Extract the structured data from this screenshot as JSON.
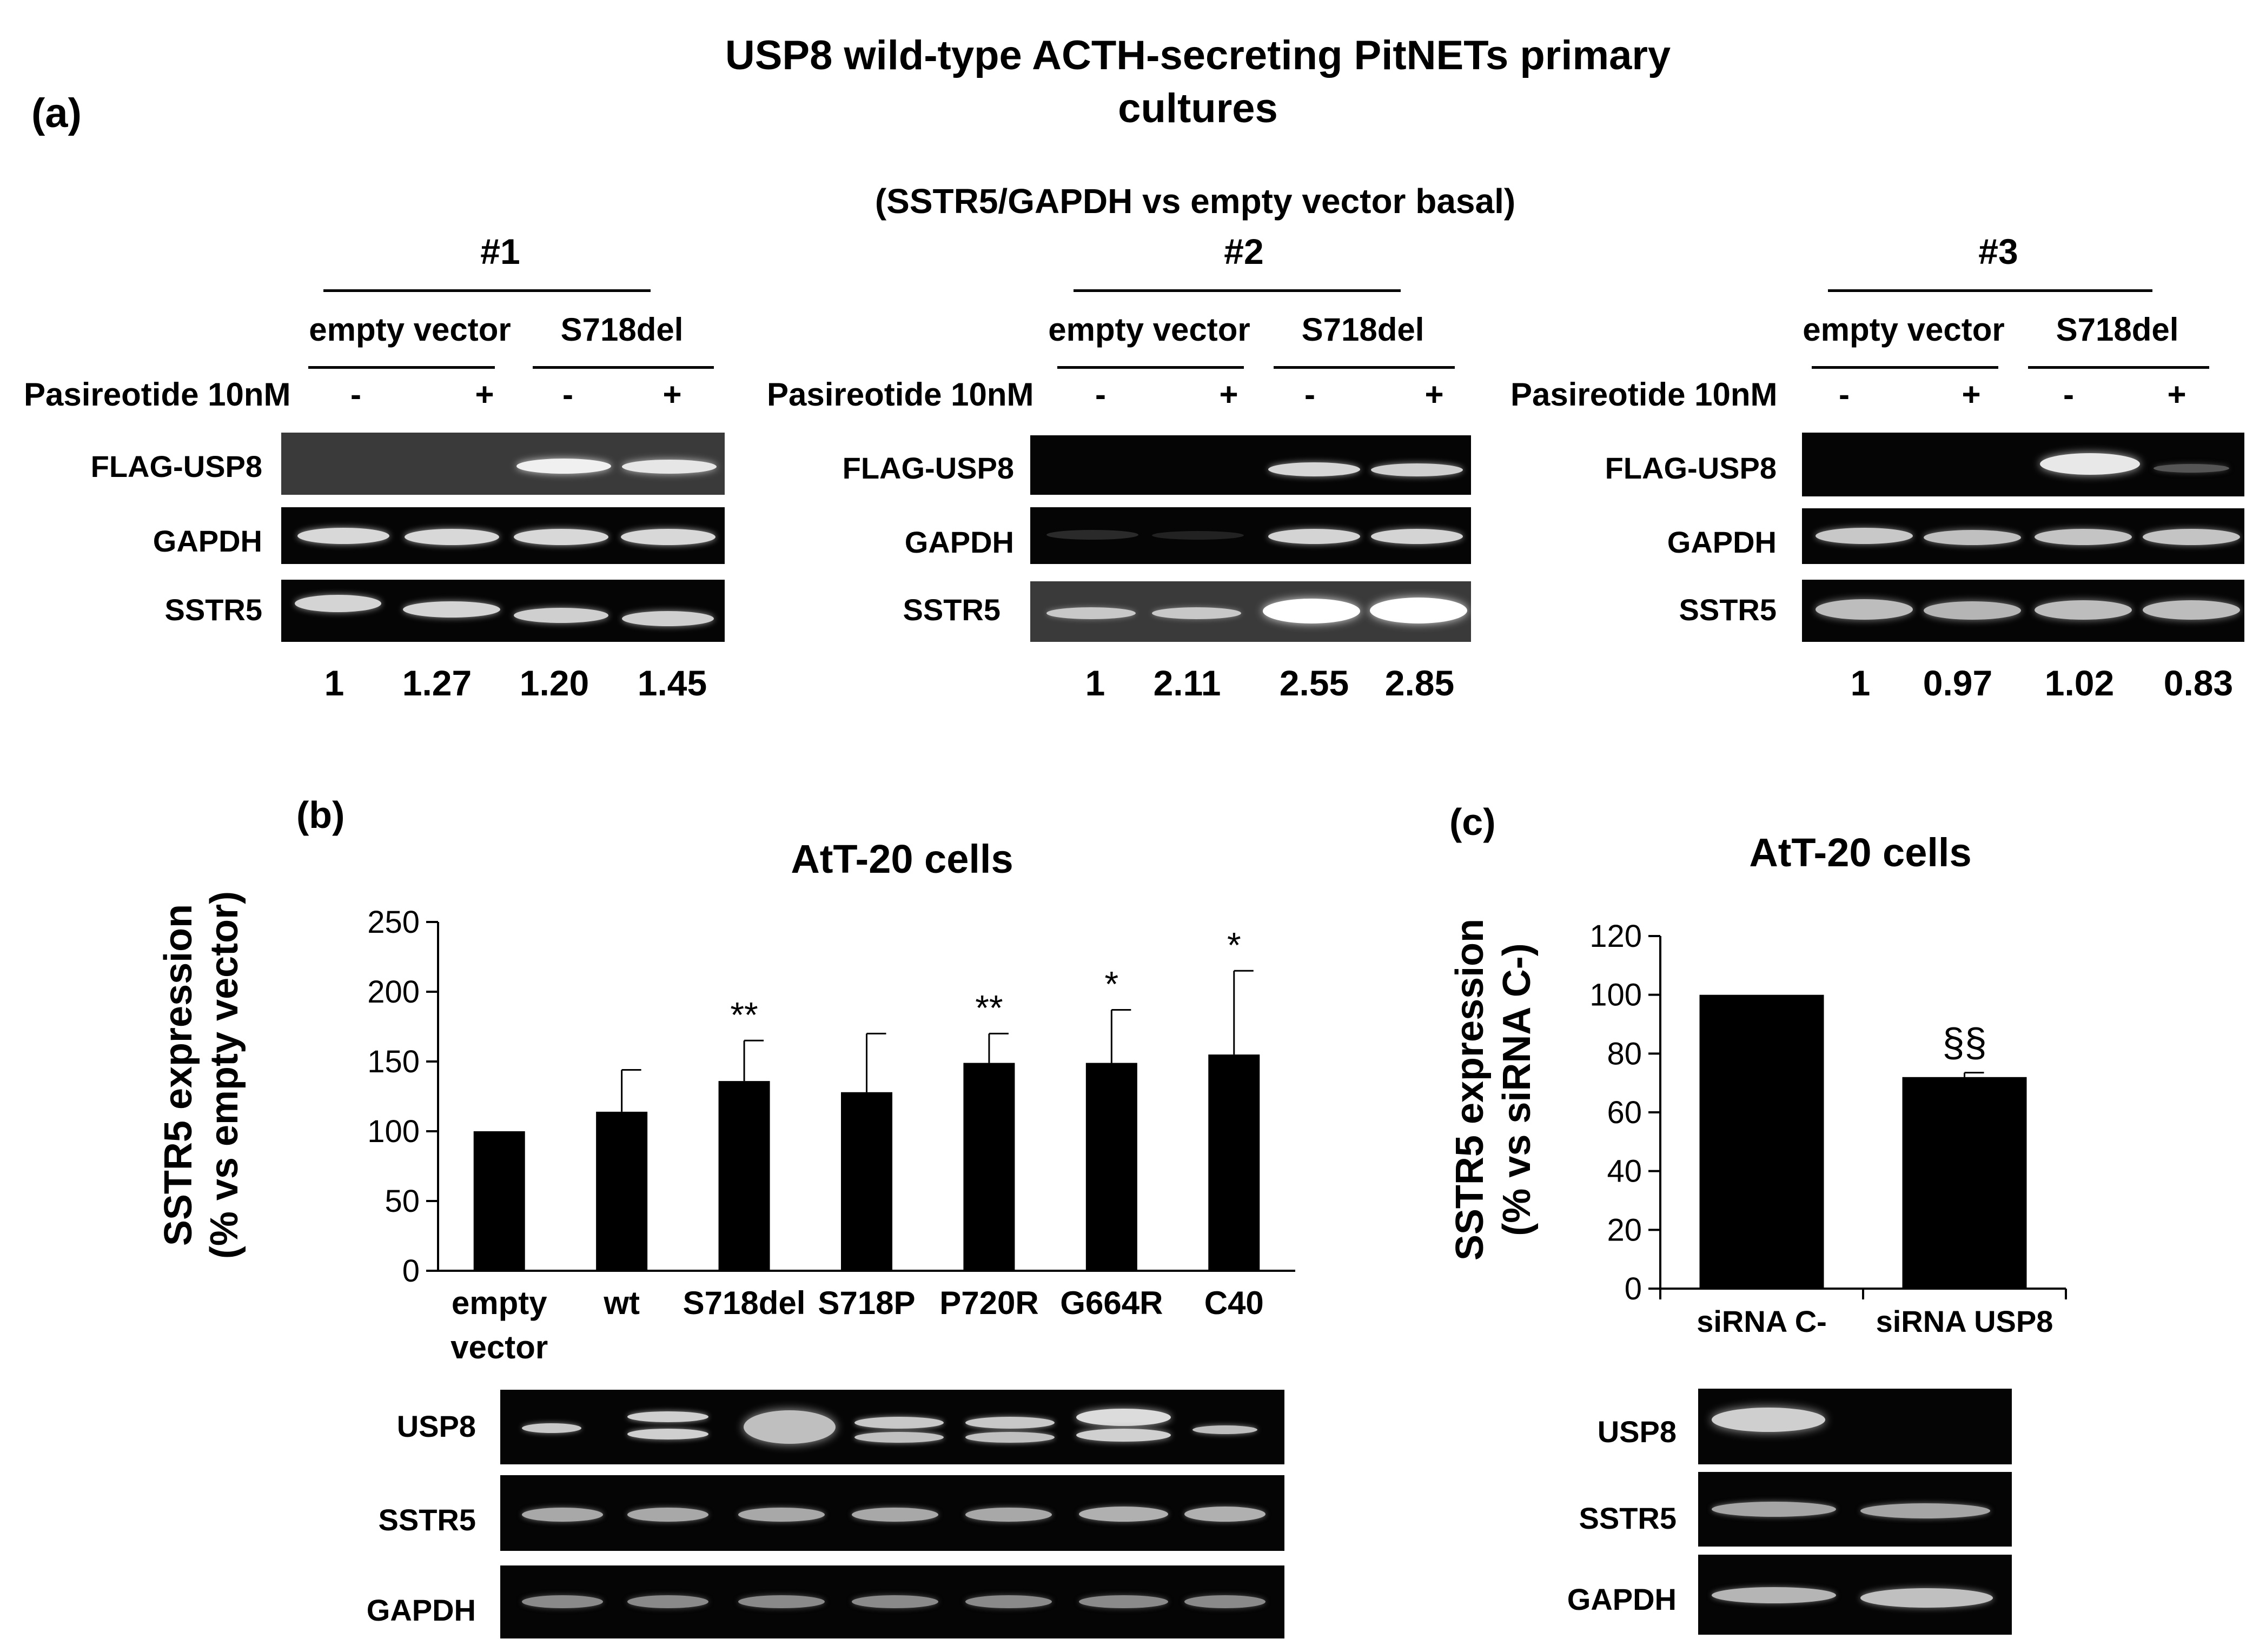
{
  "figure": {
    "title_line1": "USP8 wild-type ACTH-secreting PitNETs primary",
    "title_line2": "cultures",
    "subtitle": "(SSTR5/GAPDH vs empty  vector basal)"
  },
  "panel_a": {
    "letter": "(a)",
    "cultures": [
      {
        "id": "#1",
        "group1": "empty vector",
        "group2": "S718del",
        "treatment_label": "Pasireotide 10nM",
        "signs": [
          "-",
          "+",
          "-",
          "+"
        ],
        "blot_labels": [
          "FLAG-USP8",
          "GAPDH",
          "SSTR5"
        ],
        "ratios": [
          "1",
          "1.27",
          "1.20",
          "1.45"
        ]
      },
      {
        "id": "#2",
        "group1": "empty vector",
        "group2": "S718del",
        "treatment_label": "Pasireotide 10nM",
        "signs": [
          "-",
          "+",
          "-",
          "+"
        ],
        "blot_labels": [
          "FLAG-USP8",
          "GAPDH",
          "SSTR5"
        ],
        "ratios": [
          "1",
          "2.11",
          "2.55",
          "2.85"
        ]
      },
      {
        "id": "#3",
        "group1": "empty vector",
        "group2": "S718del",
        "treatment_label": "Pasireotide 10nM",
        "signs": [
          "-",
          "+",
          "-",
          "+"
        ],
        "blot_labels": [
          "FLAG-USP8",
          "GAPDH",
          "SSTR5"
        ],
        "ratios": [
          "1",
          "0.97",
          "1.02",
          "0.83"
        ]
      }
    ]
  },
  "chart_data": [
    {
      "panel": "(b)",
      "type": "bar",
      "title": "AtT-20 cells",
      "ylabel": "SSTR5 expression",
      "ylabel2": "(% vs empty vector)",
      "ylim": [
        0,
        250
      ],
      "yticks": [
        0,
        50,
        100,
        150,
        200,
        250
      ],
      "categories": [
        [
          "empty",
          "vector"
        ],
        [
          "wt"
        ],
        [
          "S718del"
        ],
        [
          "S718P"
        ],
        [
          "P720R"
        ],
        [
          "G664R"
        ],
        [
          "C40"
        ]
      ],
      "values": [
        100,
        114,
        136,
        128,
        149,
        149,
        155
      ],
      "error": [
        0,
        30,
        29,
        42,
        21,
        38,
        60
      ],
      "significance": [
        "",
        "",
        "**",
        "",
        "**",
        "*",
        "*"
      ],
      "bar_color": "#000000",
      "grid": false,
      "blot_labels": [
        "USP8",
        "SSTR5",
        "GAPDH"
      ]
    },
    {
      "panel": "(c)",
      "type": "bar",
      "title": "AtT-20 cells",
      "ylabel": "SSTR5 expression",
      "ylabel2": "(% vs siRNA C-)",
      "ylim": [
        0,
        120
      ],
      "yticks": [
        0,
        20,
        40,
        60,
        80,
        100,
        120
      ],
      "categories": [
        [
          "siRNA C-"
        ],
        [
          "siRNA USP8"
        ]
      ],
      "values": [
        100,
        72
      ],
      "error": [
        0,
        1.5
      ],
      "significance": [
        "",
        "§§"
      ],
      "bar_color": "#000000",
      "grid": false,
      "blot_labels": [
        "USP8",
        "SSTR5",
        "GAPDH"
      ]
    }
  ]
}
